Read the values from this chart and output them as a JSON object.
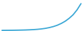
{
  "x": [
    0,
    1,
    2,
    3,
    4,
    5,
    6,
    7,
    8,
    9,
    10,
    11,
    12,
    13,
    14,
    15,
    16,
    17,
    18,
    19,
    20
  ],
  "y": [
    1.0,
    1.02,
    1.04,
    1.06,
    1.09,
    1.13,
    1.18,
    1.25,
    1.34,
    1.47,
    1.65,
    1.9,
    2.25,
    2.7,
    3.3,
    4.1,
    5.1,
    6.4,
    8.0,
    10.2,
    13.0
  ],
  "line_color": "#3aa7d5",
  "line_width": 1.3,
  "background_color": "#ffffff",
  "ylim": [
    0.85,
    14.5
  ],
  "xlim": [
    -0.3,
    20.3
  ]
}
